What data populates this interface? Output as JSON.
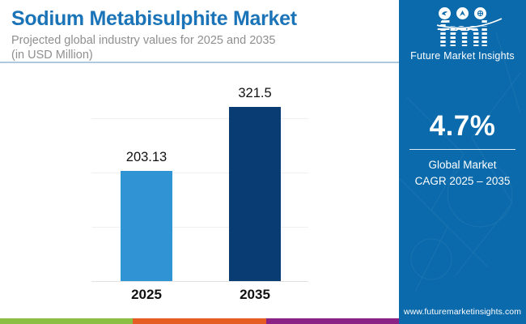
{
  "header": {
    "title": "Sodium Metabisulphite Market",
    "subtitle_line1": "Projected global industry values for 2025 and 2035",
    "subtitle_line2": "(in USD Million)"
  },
  "chart_data": {
    "type": "bar",
    "categories": [
      "2025",
      "2035"
    ],
    "values": [
      203.13,
      321.5
    ],
    "value_labels": [
      "203.13",
      "321.5"
    ],
    "bar_colors": [
      "#3094D4",
      "#083C72"
    ],
    "title": "Sodium Metabisulphite Market",
    "subtitle": "Projected global industry values for 2025 and 2035 (in USD Million)",
    "unit": "USD Million",
    "xlabel": "",
    "ylabel": "",
    "ylim": [
      0,
      350
    ],
    "gridlines": [
      0,
      100,
      200,
      300
    ],
    "grid": true,
    "legend": false
  },
  "sidebar": {
    "background": "#0B6AAB",
    "logo": {
      "text": "fmi",
      "tagline": "Future Market Insights",
      "icons": [
        "bird-icon",
        "plane-icon",
        "globe-icon"
      ]
    },
    "cagr": {
      "value": "4.7%",
      "label_line1": "Global Market",
      "label_line2": "CAGR 2025 – 2035"
    },
    "website": "www.futuremarketinsights.com"
  },
  "footer_stripe": {
    "colors": [
      "#8BBF44",
      "#E55D22",
      "#8B2386"
    ]
  }
}
